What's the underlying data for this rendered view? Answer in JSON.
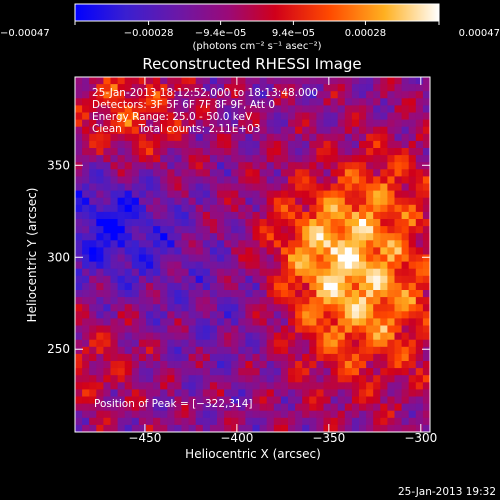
{
  "chart_data": {
    "type": "heatmap",
    "title": "Reconstructed RHESSI Image",
    "xlabel": "Heliocentric X (arcsec)",
    "ylabel": "Heliocentric Y (arcsec)",
    "xlim": [
      -488,
      -295
    ],
    "ylim": [
      205,
      398
    ],
    "xticks": [
      -450,
      -400,
      -350,
      -300
    ],
    "yticks": [
      250,
      300,
      350
    ],
    "xtick_labels": [
      "−450",
      "−400",
      "−350",
      "−300"
    ],
    "ytick_labels": [
      "250",
      "300",
      "350"
    ],
    "colorbar": {
      "ticks": [
        -0.00047,
        -0.00028,
        -9.4e-05,
        9.4e-05,
        0.00028,
        0.00047
      ],
      "tick_labels": [
        "−0.00047",
        "−0.00028",
        "−9.4e−05",
        "9.4e−05",
        "0.00028",
        "0.00047"
      ],
      "units_label": "(photons cm⁻² s⁻¹ asec⁻²)",
      "range": [
        -0.00047,
        0.00047
      ],
      "colors": [
        "#0000ff",
        "#5a1fb4",
        "#8a0c8a",
        "#c0001e",
        "#ff3000",
        "#ff9a10",
        "#ffe860",
        "#ffffff"
      ]
    },
    "annotations": [
      "25-Jan-2013 18:12:52.000 to 18:13:48.000",
      "Detectors: 3F 5F 6F 7F 8F 9F, Att 0",
      "Energy Range: 25.0 - 50.0 keV",
      "Clean     Total counts: 2.11E+03"
    ],
    "peak_label": "Position of Peak = [−322,314]",
    "peak": [
      -322,
      314
    ],
    "grid": false
  },
  "footer": {
    "timestamp": "25-Jan-2013 19:32"
  }
}
